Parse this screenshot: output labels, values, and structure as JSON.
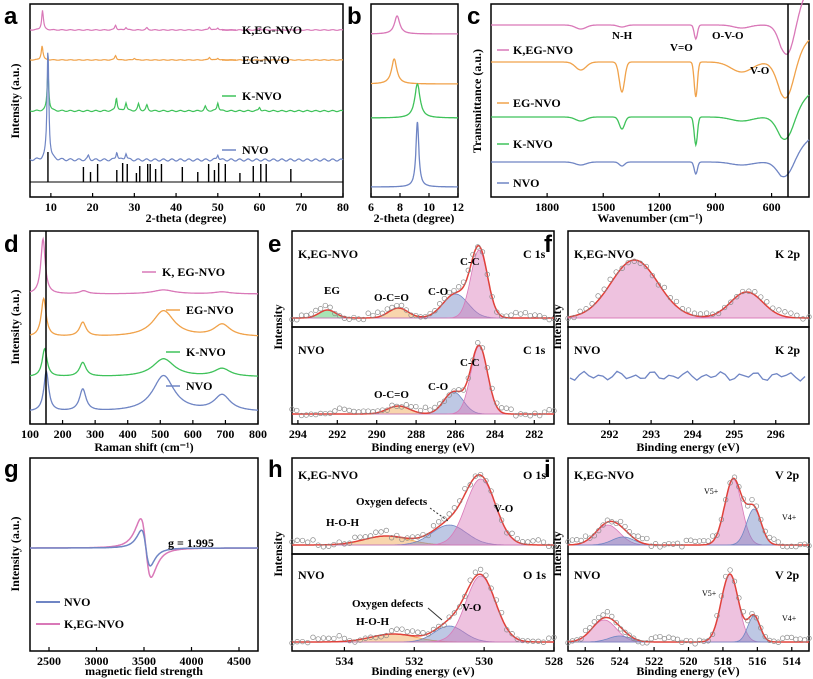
{
  "colors": {
    "pink": "#d978b8",
    "orange": "#f0a24a",
    "green": "#3fc25a",
    "blue": "#6f85c4",
    "red": "#e0413a"
  },
  "chart_data": [
    {
      "id": "a",
      "type": "line",
      "panel_label": "a",
      "xlabel": "2-theta (degree)",
      "ylabel": "Intensity (a.u.)",
      "xlim": [
        5,
        80
      ],
      "xticks": [
        10,
        20,
        30,
        40,
        50,
        60,
        70,
        80
      ],
      "series": [
        {
          "name": "K,EG-NVO",
          "color": "pink",
          "peaks": [
            [
              8.0,
              0.9
            ],
            [
              25.5,
              0.22
            ],
            [
              28,
              0.12
            ],
            [
              33,
              0.1
            ],
            [
              48,
              0.14
            ],
            [
              50,
              0.1
            ],
            [
              60,
              0.08
            ]
          ]
        },
        {
          "name": "EG-NVO",
          "color": "orange",
          "peaks": [
            [
              7.9,
              0.8
            ],
            [
              25.5,
              0.25
            ],
            [
              30,
              0.1
            ],
            [
              48,
              0.15
            ],
            [
              50,
              0.1
            ]
          ]
        },
        {
          "name": "K-NVO",
          "color": "green",
          "peaks": [
            [
              9.3,
              1.0
            ],
            [
              25.7,
              0.35
            ],
            [
              28,
              0.22
            ],
            [
              31,
              0.18
            ],
            [
              33,
              0.15
            ],
            [
              47,
              0.12
            ],
            [
              50,
              0.22
            ],
            [
              60,
              0.1
            ]
          ]
        },
        {
          "name": "NVO",
          "color": "blue",
          "peaks": [
            [
              9.3,
              1.6
            ],
            [
              19,
              0.06
            ],
            [
              25.8,
              0.12
            ],
            [
              28,
              0.1
            ],
            [
              50,
              0.08
            ]
          ]
        }
      ],
      "reference_ticks": [
        9.3,
        17.8,
        19.5,
        21.2,
        25.8,
        27.2,
        28.3,
        30.5,
        31.3,
        33.2,
        33.8,
        35.1,
        36.5,
        41.5,
        45.2,
        47.8,
        49.2,
        50.2,
        51.8,
        55.3,
        58.5,
        60.3,
        61.6,
        67.5
      ]
    },
    {
      "id": "b",
      "type": "line",
      "panel_label": "b",
      "xlabel": "2-theta (degree)",
      "xlim": [
        6,
        12
      ],
      "xticks": [
        6,
        8,
        10,
        12
      ],
      "series": [
        {
          "name": "K,EG-NVO",
          "color": "pink",
          "peak_x": 7.8
        },
        {
          "name": "EG-NVO",
          "color": "orange",
          "peak_x": 7.6
        },
        {
          "name": "K-NVO",
          "color": "green",
          "peak_x": 9.2
        },
        {
          "name": "NVO",
          "color": "blue",
          "peak_x": 9.2
        }
      ]
    },
    {
      "id": "c",
      "type": "line",
      "panel_label": "c",
      "xlabel": "Wavenumber (cm⁻¹)",
      "ylabel": "Transmittance (a.u.)",
      "xlim": [
        2100,
        400
      ],
      "xticks": [
        1800,
        1500,
        1200,
        900,
        600
      ],
      "vline_x": 500,
      "series": [
        {
          "name": "K,EG-NVO",
          "color": "pink"
        },
        {
          "name": "EG-NVO",
          "color": "orange"
        },
        {
          "name": "K-NVO",
          "color": "green"
        },
        {
          "name": "NVO",
          "color": "blue"
        }
      ],
      "annotations": [
        "N-H",
        "V=O",
        "O-V-O",
        "V-O"
      ]
    },
    {
      "id": "d",
      "type": "line",
      "panel_label": "d",
      "xlabel": "Raman shift (cm⁻¹)",
      "ylabel": "Intensity (a.u.)",
      "xlim": [
        100,
        800
      ],
      "xticks": [
        100,
        200,
        300,
        400,
        500,
        600,
        700,
        800
      ],
      "vline_x": 150,
      "series": [
        {
          "name": "K, EG-NVO",
          "color": "pink"
        },
        {
          "name": "EG-NVO",
          "color": "orange"
        },
        {
          "name": "K-NVO",
          "color": "green"
        },
        {
          "name": "NVO",
          "color": "blue"
        }
      ]
    },
    {
      "id": "e",
      "type": "line",
      "panel_label": "e",
      "xlabel": "Binding energy (eV)",
      "ylabel": "Intensity",
      "xlim": [
        294,
        281
      ],
      "xticks": [
        294,
        292,
        290,
        288,
        286,
        284,
        282
      ],
      "subplots": [
        {
          "sample": "K,EG-NVO",
          "core": "C 1s",
          "components": [
            "EG",
            "O-C=O",
            "C-O",
            "C-C"
          ]
        },
        {
          "sample": "NVO",
          "core": "C 1s",
          "components": [
            "O-C=O",
            "C-O",
            "C-C"
          ]
        }
      ]
    },
    {
      "id": "f",
      "type": "line",
      "panel_label": "f",
      "xlabel": "Binding energy (eV)",
      "ylabel": "Intensity",
      "xlim": [
        291,
        296.8
      ],
      "xticks": [
        292,
        293,
        294,
        295,
        296
      ],
      "subplots": [
        {
          "sample": "K,EG-NVO",
          "core": "K 2p"
        },
        {
          "sample": "NVO",
          "core": "K 2p"
        }
      ]
    },
    {
      "id": "g",
      "type": "line",
      "panel_label": "g",
      "xlabel": "magnetic field strength",
      "ylabel": "Intensity (a.u.)",
      "xlim": [
        2300,
        4700
      ],
      "xticks": [
        2500,
        3000,
        3500,
        4000,
        4500
      ],
      "annotation": "g = 1.995",
      "series": [
        {
          "name": "NVO",
          "color": "blue"
        },
        {
          "name": "K,EG-NVO",
          "color": "pink"
        }
      ]
    },
    {
      "id": "h",
      "type": "line",
      "panel_label": "h",
      "xlabel": "Binding energy (eV)",
      "ylabel": "Intensity",
      "xlim": [
        535.5,
        528
      ],
      "xticks": [
        534,
        532,
        530,
        528
      ],
      "subplots": [
        {
          "sample": "K,EG-NVO",
          "core": "O 1s",
          "components": [
            "Oxygen defects",
            "H-O-H",
            "V-O"
          ]
        },
        {
          "sample": "NVO",
          "core": "O 1s",
          "components": [
            "Oxygen defects",
            "H-O-H",
            "V-O"
          ]
        }
      ]
    },
    {
      "id": "i",
      "type": "line",
      "panel_label": "i",
      "xlabel": "Binding energy (eV)",
      "ylabel": "Intensity",
      "xlim": [
        527,
        513
      ],
      "xticks": [
        526,
        524,
        522,
        520,
        518,
        516,
        514
      ],
      "subplots": [
        {
          "sample": "K,EG-NVO",
          "core": "V 2p",
          "components": [
            "V5+",
            "V4+"
          ]
        },
        {
          "sample": "NVO",
          "core": "V 2p",
          "components": [
            "V5+",
            "V4+"
          ]
        }
      ]
    }
  ]
}
